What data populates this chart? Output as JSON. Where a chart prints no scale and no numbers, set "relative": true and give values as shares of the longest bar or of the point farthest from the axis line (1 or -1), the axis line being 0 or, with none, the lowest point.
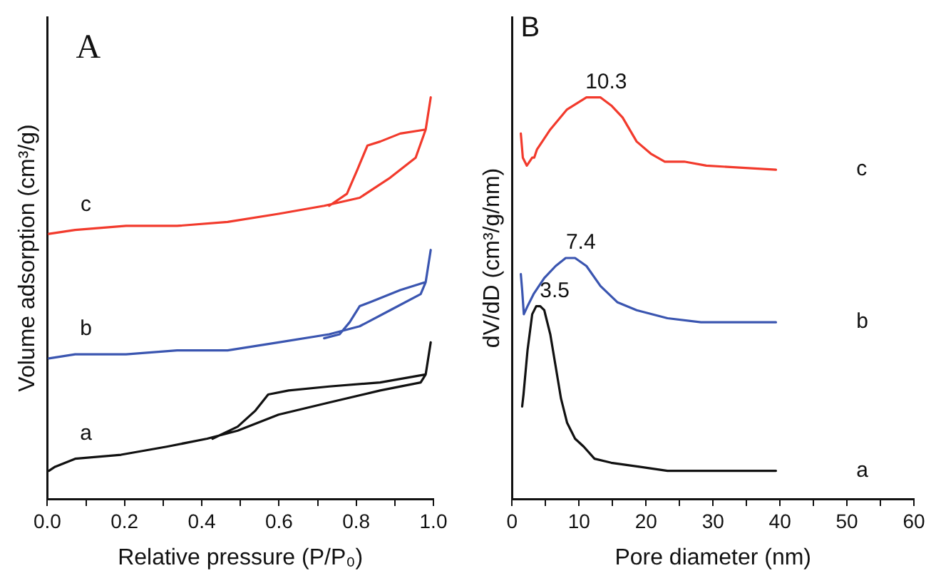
{
  "chart_data": [
    {
      "type": "line",
      "title": "A",
      "xlabel": "Relative pressure (P/P₀)",
      "ylabel": "Volume adsorption (cm³/g)",
      "relative": true,
      "legend": false,
      "grid": false,
      "marker": "none",
      "line_style": "solid",
      "xlim": [
        0,
        1.0
      ],
      "xticks": [
        {
          "value": 0,
          "label": "0.0"
        },
        {
          "value": 0.1,
          "label": null
        },
        {
          "value": 0.2,
          "label": "0.2"
        },
        {
          "value": 0.3,
          "label": null
        },
        {
          "value": 0.4,
          "label": "0.4"
        },
        {
          "value": 0.5,
          "label": null
        },
        {
          "value": 0.6,
          "label": "0.6"
        },
        {
          "value": 0.7,
          "label": null
        },
        {
          "value": 0.8,
          "label": "0.8"
        },
        {
          "value": 0.9,
          "label": null
        },
        {
          "value": 1.0,
          "label": "1.0"
        }
      ],
      "series": [
        {
          "name": "a",
          "color": "#111111",
          "x": [
            0.004,
            0.02,
            0.072,
            0.191,
            0.309,
            0.414,
            0.493,
            0.599,
            0.73,
            0.862,
            0.967,
            0.98,
            0.993,
            0.98,
            0.862,
            0.73,
            0.625,
            0.572,
            0.539,
            0.493,
            0.428
          ],
          "values": [
            0.07,
            0.08,
            0.1,
            0.11,
            0.13,
            0.15,
            0.17,
            0.21,
            0.24,
            0.27,
            0.29,
            0.31,
            0.39,
            0.31,
            0.29,
            0.28,
            0.27,
            0.26,
            0.22,
            0.18,
            0.15
          ]
        },
        {
          "name": "b",
          "color": "#3a55b0",
          "x": [
            0.004,
            0.072,
            0.204,
            0.336,
            0.467,
            0.599,
            0.73,
            0.809,
            0.888,
            0.967,
            0.98,
            0.993,
            0.98,
            0.914,
            0.836,
            0.809,
            0.783,
            0.757,
            0.717
          ],
          "values": [
            0.35,
            0.36,
            0.36,
            0.37,
            0.37,
            0.39,
            0.41,
            0.43,
            0.47,
            0.51,
            0.54,
            0.62,
            0.54,
            0.52,
            0.49,
            0.48,
            0.44,
            0.41,
            0.4
          ]
        },
        {
          "name": "c",
          "color": "#f23a2c",
          "x": [
            0.004,
            0.072,
            0.204,
            0.336,
            0.467,
            0.599,
            0.717,
            0.809,
            0.888,
            0.954,
            0.98,
            0.993,
            0.98,
            0.914,
            0.862,
            0.829,
            0.803,
            0.776,
            0.73
          ],
          "values": [
            0.66,
            0.67,
            0.68,
            0.68,
            0.69,
            0.71,
            0.73,
            0.75,
            0.8,
            0.85,
            0.92,
            1.0,
            0.92,
            0.91,
            0.89,
            0.88,
            0.82,
            0.76,
            0.73
          ]
        }
      ]
    },
    {
      "type": "line",
      "title": "B",
      "xlabel": "Pore diameter (nm)",
      "ylabel": "dV/dD (cm³/g/nm)",
      "relative": true,
      "legend": false,
      "grid": false,
      "marker": "none",
      "line_style": "solid",
      "xlim": [
        0,
        60
      ],
      "xticks": [
        0,
        {
          "value": 5,
          "label": null
        },
        10,
        {
          "value": 15,
          "label": null
        },
        20,
        {
          "value": 25,
          "label": null
        },
        30,
        {
          "value": 35,
          "label": null
        },
        40,
        {
          "value": 45,
          "label": null
        },
        50,
        {
          "value": 55,
          "label": null
        },
        60
      ],
      "annotations": [
        {
          "text": "3.5",
          "x": 3.5,
          "y": 0.48
        },
        {
          "text": "7.4",
          "x": 7.4,
          "y": 0.6
        },
        {
          "text": "10.3",
          "x": 10.3,
          "y": 1.0
        }
      ],
      "series": [
        {
          "name": "a",
          "color": "#111111",
          "x": [
            1.5,
            1.7,
            2.3,
            3.0,
            3.6,
            4.2,
            4.8,
            5.7,
            6.5,
            7.3,
            8.2,
            9.4,
            10.7,
            12.3,
            14.8,
            19.0,
            23.2,
            31.5,
            39.4
          ],
          "values": [
            0.23,
            0.26,
            0.37,
            0.46,
            0.48,
            0.48,
            0.47,
            0.41,
            0.33,
            0.25,
            0.19,
            0.15,
            0.13,
            0.1,
            0.09,
            0.08,
            0.07,
            0.07,
            0.07
          ]
        },
        {
          "name": "b",
          "color": "#3a55b0",
          "x": [
            1.3,
            1.5,
            1.75,
            2.3,
            3.2,
            4.8,
            6.5,
            8.0,
            9.4,
            11.1,
            13.2,
            15.7,
            18.6,
            23.2,
            28.2,
            39.4
          ],
          "values": [
            0.56,
            0.52,
            0.46,
            0.48,
            0.51,
            0.55,
            0.58,
            0.6,
            0.6,
            0.58,
            0.53,
            0.49,
            0.47,
            0.45,
            0.44,
            0.44
          ]
        },
        {
          "name": "c",
          "color": "#f23a2c",
          "x": [
            1.3,
            1.6,
            2.2,
            3.0,
            3.3,
            3.7,
            5.7,
            8.2,
            11.1,
            13.2,
            14.8,
            16.5,
            18.6,
            20.7,
            22.8,
            25.7,
            29.0,
            39.4
          ],
          "values": [
            0.91,
            0.85,
            0.83,
            0.85,
            0.85,
            0.87,
            0.92,
            0.97,
            1.0,
            1.0,
            0.98,
            0.95,
            0.89,
            0.86,
            0.84,
            0.84,
            0.83,
            0.82
          ]
        }
      ]
    }
  ]
}
